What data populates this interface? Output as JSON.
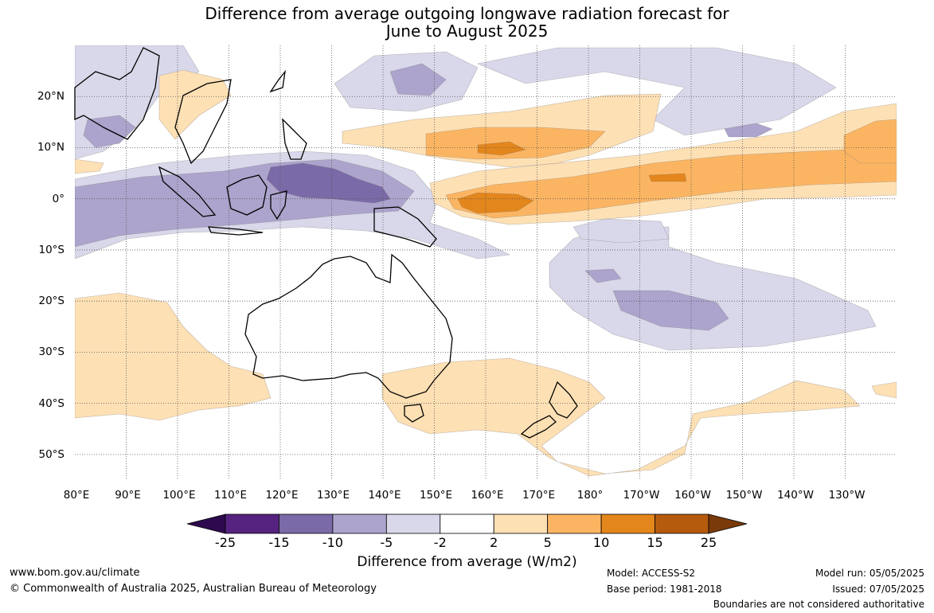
{
  "title": {
    "line1": "Difference from average outgoing longwave radiation forecast for",
    "line2": "June to August 2025"
  },
  "map": {
    "lon_labels": [
      "80°E",
      "90°E",
      "100°E",
      "110°E",
      "120°E",
      "130°E",
      "140°E",
      "150°E",
      "160°E",
      "170°E",
      "180°",
      "170°W",
      "160°W",
      "150°W",
      "140°W",
      "130°W"
    ],
    "lat_labels": [
      "20°N",
      "10°N",
      "0°",
      "10°S",
      "20°S",
      "30°S",
      "40°S",
      "50°S"
    ],
    "extent": {
      "lon_min": 80,
      "lon_max": 240,
      "lat_min": -55,
      "lat_max": 30
    },
    "gridlines": "dotted",
    "anomaly_regions": [
      {
        "name": "equatorial-central-pacific-positive",
        "category": "5 to 10"
      },
      {
        "name": "equatorial-core-positive",
        "category": "10 to 15"
      },
      {
        "name": "maritime-continent-negative",
        "category": "-10 to -5"
      },
      {
        "name": "indonesia-core-negative",
        "category": "-15 to -10"
      },
      {
        "name": "south-pacific-convergence-negative",
        "category": "-5 to -2"
      },
      {
        "name": "southern-ocean-positive",
        "category": "2 to 5"
      }
    ]
  },
  "colorbar": {
    "ticks": [
      "-25",
      "-15",
      "-10",
      "-5",
      "-2",
      "2",
      "5",
      "10",
      "15",
      "25"
    ],
    "colors": [
      "#2d0a4e",
      "#55237f",
      "#7a6aa8",
      "#aca4cc",
      "#d8d8ea",
      "#ffffff",
      "#fde0b4",
      "#fbb562",
      "#e3861c",
      "#b45b0e",
      "#7a3a0a"
    ],
    "label": "Difference from average (W/m2)"
  },
  "colors": {
    "neg_2_5": "#d8d8ea",
    "neg_5_10": "#aca4cc",
    "neg_10_15": "#7a6aa8",
    "pos_2_5": "#fde0b4",
    "pos_5_10": "#fbb562",
    "pos_10_15": "#e3861c",
    "coast": "#000000",
    "border": "#888888"
  },
  "footer": {
    "website": "www.bom.gov.au/climate",
    "copyright": "© Commonwealth of Australia 2025, Australian Bureau of Meteorology",
    "model": "Model: ACCESS-S2",
    "base_period": "Base period: 1981-2018",
    "model_run": "Model run: 05/05/2025",
    "issued": "Issued: 07/05/2025",
    "disclaimer": "Boundaries are not considered authoritative"
  }
}
